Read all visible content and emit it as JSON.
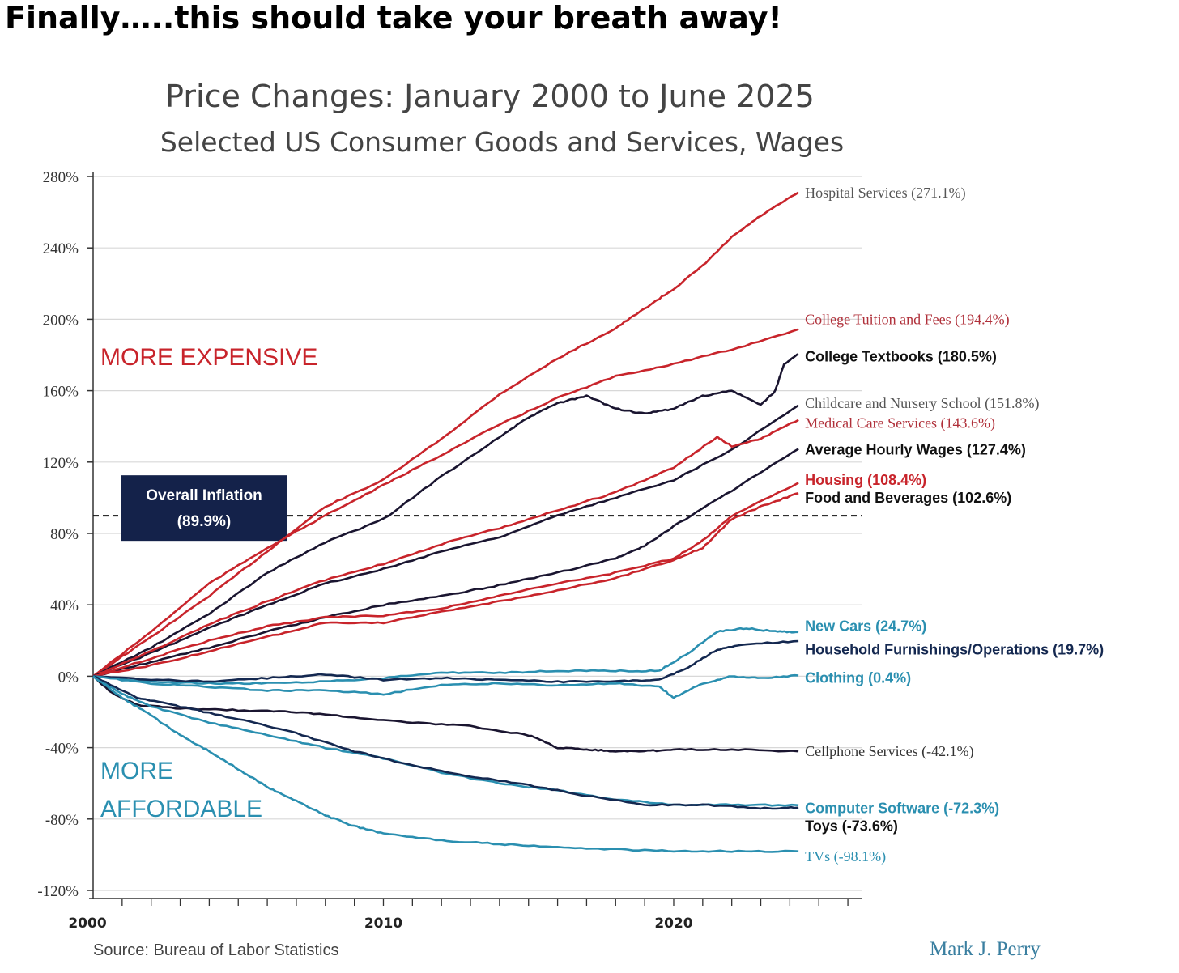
{
  "headline": "Finally…..this should take your breath away!",
  "chart_data": {
    "type": "line",
    "title": "Price Changes: January 2000 to June 2025",
    "subtitle": "Selected US Consumer Goods and Services, Wages",
    "ylim": [
      -120,
      280
    ],
    "y_ticks": [
      280,
      240,
      200,
      160,
      120,
      80,
      40,
      0,
      -40,
      -80,
      -120
    ],
    "y_tick_labels": [
      "280%",
      "240%",
      "200%",
      "160%",
      "120%",
      "80%",
      "40%",
      "0%",
      "-40%",
      "-80%",
      "-120%"
    ],
    "xlim": [
      2000,
      2026.5
    ],
    "x_tick_labels": [
      {
        "year": 2000,
        "label": "2000"
      },
      {
        "year": 2010,
        "label": "2010"
      },
      {
        "year": 2020,
        "label": "2020"
      }
    ],
    "zone_labels": {
      "more_expensive": "MORE EXPENSIVE",
      "more_affordable_1": "MORE",
      "more_affordable_2": "AFFORDABLE"
    },
    "overall_inflation": {
      "value": 89.9,
      "label_line1": "Overall Inflation",
      "label_line2": "(89.9%)"
    },
    "source": "Source: Bureau of Labor Statistics",
    "author": "Mark J. Perry",
    "colors": {
      "red": "#c8242b",
      "red_label": "#b0303a",
      "dark": "#1a1530",
      "blue": "#2a8fb0",
      "navy": "#142850"
    },
    "series": [
      {
        "name": "Hospital Services (271.1%)",
        "color": "#c8242b",
        "label_color": "#555555",
        "label_font": "serif",
        "label_y": 271,
        "final": 271.1,
        "points": [
          [
            2000,
            0
          ],
          [
            2002,
            22
          ],
          [
            2004,
            45
          ],
          [
            2006,
            70
          ],
          [
            2008,
            95
          ],
          [
            2010,
            110
          ],
          [
            2012,
            133
          ],
          [
            2014,
            158
          ],
          [
            2016,
            178
          ],
          [
            2018,
            195
          ],
          [
            2019,
            206
          ],
          [
            2020,
            217
          ],
          [
            2021,
            230
          ],
          [
            2022,
            246
          ],
          [
            2023,
            258
          ],
          [
            2024.3,
            271.1
          ]
        ]
      },
      {
        "name": "College Tuition and Fees (194.4%)",
        "color": "#c8242b",
        "label_color": "#b0303a",
        "label_font": "serif",
        "label_y": 200,
        "final": 194.4,
        "points": [
          [
            2000,
            0
          ],
          [
            2002,
            25
          ],
          [
            2004,
            52
          ],
          [
            2006,
            72
          ],
          [
            2008,
            90
          ],
          [
            2010,
            107
          ],
          [
            2012,
            124
          ],
          [
            2014,
            141
          ],
          [
            2016,
            156
          ],
          [
            2018,
            168
          ],
          [
            2020,
            175
          ],
          [
            2022,
            183
          ],
          [
            2024.3,
            194.4
          ]
        ]
      },
      {
        "name": "College Textbooks (180.5%)",
        "color": "#1a1530",
        "label_color": "#111111",
        "label_font": "bold",
        "label_y": 179,
        "final": 180.5,
        "points": [
          [
            2000,
            0
          ],
          [
            2002,
            16
          ],
          [
            2004,
            35
          ],
          [
            2006,
            58
          ],
          [
            2008,
            75
          ],
          [
            2010,
            88
          ],
          [
            2012,
            112
          ],
          [
            2014,
            134
          ],
          [
            2015,
            145
          ],
          [
            2016,
            153
          ],
          [
            2017,
            157
          ],
          [
            2018,
            150
          ],
          [
            2019,
            147
          ],
          [
            2020,
            150
          ],
          [
            2021,
            157
          ],
          [
            2022,
            160
          ],
          [
            2023,
            152
          ],
          [
            2023.5,
            160
          ],
          [
            2023.8,
            175
          ],
          [
            2024.3,
            180.5
          ]
        ]
      },
      {
        "name": "Childcare and Nursery School (151.8%)",
        "color": "#1a1530",
        "label_color": "#555555",
        "label_font": "serif",
        "label_y": 153,
        "final": 151.8,
        "points": [
          [
            2000,
            0
          ],
          [
            2002,
            13
          ],
          [
            2004,
            27
          ],
          [
            2006,
            40
          ],
          [
            2008,
            52
          ],
          [
            2010,
            60
          ],
          [
            2012,
            70
          ],
          [
            2014,
            78
          ],
          [
            2016,
            90
          ],
          [
            2018,
            100
          ],
          [
            2020,
            110
          ],
          [
            2022,
            127
          ],
          [
            2024.3,
            151.8
          ]
        ]
      },
      {
        "name": "Medical Care Services (143.6%)",
        "color": "#c8242b",
        "label_color": "#b0303a",
        "label_font": "serif",
        "label_y": 142,
        "final": 143.6,
        "points": [
          [
            2000,
            0
          ],
          [
            2002,
            14
          ],
          [
            2004,
            29
          ],
          [
            2006,
            42
          ],
          [
            2008,
            54
          ],
          [
            2010,
            63
          ],
          [
            2012,
            74
          ],
          [
            2014,
            83
          ],
          [
            2016,
            93
          ],
          [
            2018,
            103
          ],
          [
            2020,
            117
          ],
          [
            2021.5,
            134
          ],
          [
            2022,
            129
          ],
          [
            2023,
            133
          ],
          [
            2024.3,
            143.6
          ]
        ]
      },
      {
        "name": "Average Hourly Wages (127.4%)",
        "color": "#1a1530",
        "label_color": "#111111",
        "label_font": "bold",
        "label_y": 127,
        "final": 127.4,
        "points": [
          [
            2000,
            0
          ],
          [
            2002,
            8
          ],
          [
            2004,
            16
          ],
          [
            2006,
            25
          ],
          [
            2008,
            33
          ],
          [
            2010,
            40
          ],
          [
            2012,
            45
          ],
          [
            2014,
            51
          ],
          [
            2016,
            58
          ],
          [
            2018,
            66
          ],
          [
            2019,
            73
          ],
          [
            2020,
            84
          ],
          [
            2022,
            104
          ],
          [
            2024.3,
            127.4
          ]
        ]
      },
      {
        "name": "Housing (108.4%)",
        "color": "#c8242b",
        "label_color": "#c8242b",
        "label_font": "bold",
        "label_y": 110,
        "final": 108.4,
        "points": [
          [
            2000,
            0
          ],
          [
            2002,
            10
          ],
          [
            2004,
            20
          ],
          [
            2006,
            28
          ],
          [
            2008,
            33
          ],
          [
            2010,
            34
          ],
          [
            2012,
            38
          ],
          [
            2014,
            45
          ],
          [
            2016,
            52
          ],
          [
            2018,
            58
          ],
          [
            2020,
            66
          ],
          [
            2021,
            76
          ],
          [
            2022,
            90
          ],
          [
            2024.3,
            108.4
          ]
        ]
      },
      {
        "name": "Food and Beverages (102.6%)",
        "color": "#c8242b",
        "label_color": "#111111",
        "label_font": "bold",
        "label_y": 100,
        "final": 102.6,
        "points": [
          [
            2000,
            0
          ],
          [
            2002,
            6
          ],
          [
            2004,
            14
          ],
          [
            2006,
            22
          ],
          [
            2008,
            30
          ],
          [
            2010,
            30
          ],
          [
            2012,
            36
          ],
          [
            2014,
            42
          ],
          [
            2016,
            48
          ],
          [
            2018,
            55
          ],
          [
            2020,
            65
          ],
          [
            2021,
            72
          ],
          [
            2022,
            88
          ],
          [
            2023,
            95
          ],
          [
            2024.3,
            102.6
          ]
        ]
      },
      {
        "name": "New Cars (24.7%)",
        "color": "#2a8fb0",
        "label_color": "#2a8fb0",
        "label_font": "bold",
        "label_y": 28,
        "final": 24.7,
        "points": [
          [
            2000,
            0
          ],
          [
            2002,
            -3
          ],
          [
            2004,
            -4
          ],
          [
            2006,
            -4
          ],
          [
            2008,
            -3
          ],
          [
            2010,
            -1
          ],
          [
            2012,
            2
          ],
          [
            2014,
            2
          ],
          [
            2016,
            3
          ],
          [
            2018,
            3
          ],
          [
            2019.5,
            3
          ],
          [
            2020.5,
            13
          ],
          [
            2021.5,
            25
          ],
          [
            2022.5,
            27
          ],
          [
            2023.5,
            25
          ],
          [
            2024.3,
            24.7
          ]
        ]
      },
      {
        "name": "Household Furnishings/Operations (19.7%)",
        "color": "#142850",
        "label_color": "#142850",
        "label_font": "bold",
        "label_y": 15,
        "final": 19.7,
        "points": [
          [
            2000,
            0
          ],
          [
            2002,
            -2
          ],
          [
            2004,
            -3
          ],
          [
            2006,
            -1
          ],
          [
            2008,
            1
          ],
          [
            2010,
            -2
          ],
          [
            2012,
            -1
          ],
          [
            2014,
            -2
          ],
          [
            2016,
            -3
          ],
          [
            2018,
            -3
          ],
          [
            2019.5,
            -2
          ],
          [
            2020.5,
            5
          ],
          [
            2021.5,
            15
          ],
          [
            2022.5,
            18
          ],
          [
            2024.3,
            19.7
          ]
        ]
      },
      {
        "name": "Clothing (0.4%)",
        "color": "#2a8fb0",
        "label_color": "#2a8fb0",
        "label_font": "bold",
        "label_y": -1,
        "final": 0.4,
        "points": [
          [
            2000,
            0
          ],
          [
            2002,
            -4
          ],
          [
            2004,
            -6
          ],
          [
            2006,
            -8
          ],
          [
            2008,
            -8
          ],
          [
            2010,
            -10
          ],
          [
            2012,
            -5
          ],
          [
            2014,
            -4
          ],
          [
            2016,
            -5
          ],
          [
            2018,
            -4
          ],
          [
            2019.5,
            -6
          ],
          [
            2020,
            -12
          ],
          [
            2021,
            -4
          ],
          [
            2022,
            0
          ],
          [
            2023,
            -1
          ],
          [
            2024.3,
            0.4
          ]
        ]
      },
      {
        "name": "Cellphone Services (-42.1%)",
        "color": "#1a1530",
        "label_color": "#333333",
        "label_font": "serif",
        "label_y": -42,
        "final": -42.1,
        "points": [
          [
            2000,
            0
          ],
          [
            2000.7,
            -10
          ],
          [
            2001.5,
            -16
          ],
          [
            2003,
            -18
          ],
          [
            2005,
            -19
          ],
          [
            2007,
            -20
          ],
          [
            2009,
            -23
          ],
          [
            2011,
            -26
          ],
          [
            2013,
            -28
          ],
          [
            2015,
            -33
          ],
          [
            2016,
            -40
          ],
          [
            2017,
            -41
          ],
          [
            2018,
            -42
          ],
          [
            2019,
            -42
          ],
          [
            2020,
            -41
          ],
          [
            2022,
            -41
          ],
          [
            2024.3,
            -42.1
          ]
        ]
      },
      {
        "name": "Computer Software (-72.3%)",
        "color": "#2a8fb0",
        "label_color": "#2a8fb0",
        "label_font": "bold",
        "label_y": -74,
        "final": -72.3,
        "points": [
          [
            2000,
            0
          ],
          [
            2001,
            -10
          ],
          [
            2002,
            -17
          ],
          [
            2004,
            -26
          ],
          [
            2006,
            -33
          ],
          [
            2008,
            -40
          ],
          [
            2010,
            -46
          ],
          [
            2012,
            -54
          ],
          [
            2014,
            -60
          ],
          [
            2016,
            -64
          ],
          [
            2018,
            -69
          ],
          [
            2020,
            -72
          ],
          [
            2022,
            -72
          ],
          [
            2024.3,
            -72.3
          ]
        ]
      },
      {
        "name": "Toys (-73.6%)",
        "color": "#142850",
        "label_color": "#111111",
        "label_font": "bold",
        "label_y": -84,
        "final": -73.6,
        "points": [
          [
            2000,
            0
          ],
          [
            2001.5,
            -12
          ],
          [
            2003,
            -17
          ],
          [
            2005,
            -24
          ],
          [
            2007,
            -32
          ],
          [
            2009,
            -42
          ],
          [
            2011,
            -50
          ],
          [
            2013,
            -56
          ],
          [
            2015,
            -61
          ],
          [
            2017,
            -67
          ],
          [
            2019,
            -72
          ],
          [
            2021,
            -72
          ],
          [
            2023,
            -74
          ],
          [
            2024.3,
            -73.6
          ]
        ]
      },
      {
        "name": "TVs (-98.1%)",
        "color": "#2a8fb0",
        "label_color": "#2a8fb0",
        "label_font": "serif",
        "label_y": -101,
        "final": -98.1,
        "points": [
          [
            2000,
            0
          ],
          [
            2001,
            -12
          ],
          [
            2002,
            -22
          ],
          [
            2003,
            -33
          ],
          [
            2004,
            -42
          ],
          [
            2005,
            -52
          ],
          [
            2006,
            -62
          ],
          [
            2007,
            -70
          ],
          [
            2008,
            -78
          ],
          [
            2009,
            -84
          ],
          [
            2010,
            -88
          ],
          [
            2012,
            -92
          ],
          [
            2014,
            -94
          ],
          [
            2016,
            -96
          ],
          [
            2018,
            -97
          ],
          [
            2020,
            -98
          ],
          [
            2022,
            -98
          ],
          [
            2024.3,
            -98.1
          ]
        ]
      }
    ]
  }
}
